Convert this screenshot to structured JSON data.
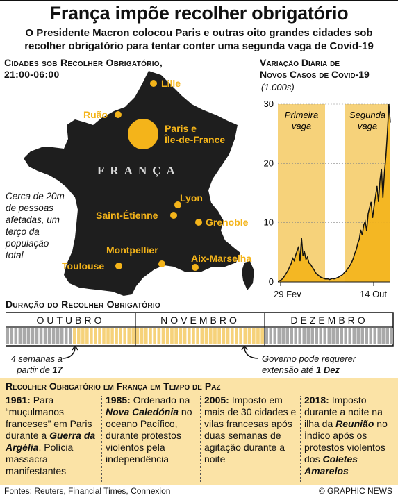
{
  "title": "França impõe recolher obrigatório",
  "subtitle": "O Presidente Macron colocou Paris e outras oito grandes cidades sob recolher obrigatório para tentar conter uma segunda vaga de Covid-19",
  "map": {
    "heading_line1": "Cidades sob Recolher Obrigatório,",
    "heading_line2": "21:00-06:00",
    "country_label": "FRANÇA",
    "note": "Cerca de 20m de pessoas afetadas, um terço da população total",
    "cities": {
      "lille": "Lille",
      "ruao": "Ruão",
      "paris_line1": "Paris e",
      "paris_line2": "Île-de-France",
      "lyon": "Lyon",
      "saint_etienne": "Saint-Étienne",
      "grenoble": "Grenoble",
      "montpellier": "Montpellier",
      "toulouse": "Toulouse",
      "aix": "Aix-Marselha"
    }
  },
  "chart_data": {
    "type": "area",
    "title_line1": "Variação Diária de",
    "title_line2": "Novos Casos de Covid-19",
    "unit": "(1.000s)",
    "ylim": [
      0,
      30
    ],
    "yticks": [
      "30",
      "20",
      "10",
      "0"
    ],
    "x_labels": [
      "29 Fev",
      "14 Out"
    ],
    "bands": [
      "Primeira vaga",
      "Segunda vaga"
    ],
    "band1_line1": "Primeira",
    "band1_line2": "vaga",
    "band2_line1": "Segunda",
    "band2_line2": "vaga",
    "daily_values": [
      0.1,
      0.2,
      0.3,
      0.5,
      0.8,
      1.2,
      1.6,
      2.0,
      2.6,
      3.1,
      4.0,
      3.6,
      4.5,
      5.2,
      6.0,
      3.5,
      7.5,
      4.4,
      5.0,
      3.8,
      4.2,
      3.2,
      3.0,
      2.6,
      2.2,
      1.8,
      1.4,
      1.2,
      1.0,
      0.8,
      0.7,
      0.6,
      0.5,
      0.5,
      0.5,
      0.4,
      0.5,
      0.6,
      0.5,
      0.6,
      0.7,
      0.8,
      1.0,
      1.1,
      1.3,
      1.6,
      1.8,
      2.2,
      2.5,
      2.9,
      3.4,
      4.0,
      4.8,
      5.5,
      6.5,
      7.2,
      8.8,
      7.9,
      9.6,
      10.2,
      8.6,
      11.5,
      12.6,
      13.5,
      10.8,
      12.8,
      14.5,
      16.2,
      13.5,
      17.2,
      19.1,
      14.2,
      18.5,
      21.2,
      25.1,
      30.0,
      26.9
    ]
  },
  "duration": {
    "heading": "Duração do Recolher Obrigatório",
    "months": [
      "OUTUBRO",
      "NOVEMBRO",
      "DEZEMBRO"
    ],
    "start_note_line1": "4 semanas a",
    "start_note_line2": "partir de",
    "start_date": "17 Out",
    "end_note_line1": "Governo pode requerer",
    "end_note_line2": "extensão até",
    "end_date": "1 Dez"
  },
  "history": {
    "heading": "Recolher Obrigatório em França em Tempo de Paz",
    "entries": [
      {
        "year": "1961:",
        "text_a": "Para “muçulmanos franceses” em Paris durante a",
        "em": "Guerra da Argélia",
        "text_b": ". Polícia massacra manifestantes"
      },
      {
        "year": "1985:",
        "text_a": "Ordenado na",
        "em": "Nova Caledónia",
        "text_b": "no oceano Pacífico, durante protestos violentos pela independência"
      },
      {
        "year": "2005:",
        "text_a": "Imposto em mais de 30 cidades e vilas francesas após duas semanas de agitação durante a noite",
        "em": "",
        "text_b": ""
      },
      {
        "year": "2018:",
        "text_a": "Imposto durante a noite na ilha da",
        "em": "Reunião",
        "text_b": "no Índico após os protestos violentos dos",
        "em2": "Coletes Amarelos"
      }
    ]
  },
  "footer": {
    "sources": "Fontes: Reuters, Financial Times, Connexion",
    "credit": "© GRAPHIC NEWS"
  },
  "colors": {
    "accent": "#f4b41a",
    "band": "#f6d27a",
    "map": "#1e1e1e",
    "history_bg": "#fbe3a6"
  }
}
